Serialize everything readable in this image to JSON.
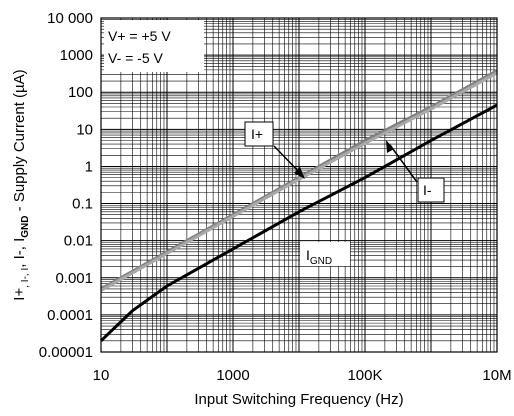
{
  "chart_data": {
    "type": "line",
    "xlabel": "Input Switching Frequency (Hz)",
    "ylabel_parts": [
      "I+",
      ", I-, I",
      "GND",
      " - Supply Current (µA)"
    ],
    "xscale": "log",
    "yscale": "log",
    "xlim": [
      10,
      10000000
    ],
    "ylim": [
      1e-05,
      10000
    ],
    "grid": true,
    "x_ticks": [
      {
        "value": 10,
        "label": "10"
      },
      {
        "value": 1000,
        "label": "1000"
      },
      {
        "value": 100000,
        "label": "100K"
      },
      {
        "value": 10000000,
        "label": "10M"
      }
    ],
    "y_ticks": [
      {
        "value": 10000,
        "label": "10 000"
      },
      {
        "value": 1000,
        "label": "1000"
      },
      {
        "value": 100,
        "label": "100"
      },
      {
        "value": 10,
        "label": "10"
      },
      {
        "value": 1,
        "label": "1"
      },
      {
        "value": 0.1,
        "label": "0.1"
      },
      {
        "value": 0.01,
        "label": "0.01"
      },
      {
        "value": 0.001,
        "label": "0.001"
      },
      {
        "value": 0.0001,
        "label": "0.0001"
      },
      {
        "value": 1e-05,
        "label": "0.00001"
      }
    ],
    "conditions": [
      "V+ = +5 V",
      "V- = -5 V"
    ],
    "series": [
      {
        "name": "I+",
        "color": "#808080",
        "x": [
          10,
          100,
          1000,
          10000,
          100000,
          1000000,
          10000000
        ],
        "y": [
          0.0005,
          0.005,
          0.05,
          0.5,
          5,
          40,
          380
        ]
      },
      {
        "name": "I-",
        "color": "#a8a8a8",
        "x": [
          10,
          100,
          1000,
          10000,
          100000,
          1000000,
          10000000
        ],
        "y": [
          0.00045,
          0.0045,
          0.045,
          0.45,
          4.2,
          35,
          330
        ]
      },
      {
        "name": "IGND",
        "color": "#000000",
        "x": [
          10,
          30,
          100,
          300,
          1000,
          10000,
          100000,
          1000000,
          10000000
        ],
        "y": [
          2e-05,
          0.00013,
          0.0006,
          0.0018,
          0.006,
          0.06,
          0.5,
          5,
          45
        ]
      }
    ],
    "annotations": [
      {
        "label": "I+"
      },
      {
        "label": "I-"
      },
      {
        "label_main": "I",
        "label_sub": "GND"
      }
    ]
  }
}
